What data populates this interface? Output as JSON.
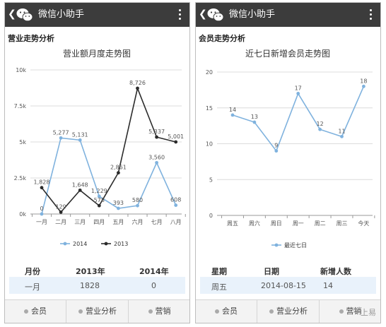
{
  "app_title": "微信小助手",
  "left": {
    "section_title": "营业走势分析",
    "table": {
      "headers": [
        "月份",
        "2013年",
        "2014年"
      ],
      "rows": [
        [
          "一月",
          "1828",
          "0"
        ]
      ]
    },
    "tabs": [
      "会员",
      "营业分析",
      "营销"
    ]
  },
  "right": {
    "section_title": "会员走势分析",
    "table": {
      "headers": [
        "星期",
        "日期",
        "新增人数"
      ],
      "rows": [
        [
          "周五",
          "2014-08-15",
          "14"
        ]
      ]
    },
    "tabs": [
      "会员",
      "营业分析",
      "营销"
    ]
  },
  "watermark": "一上易",
  "colors": {
    "topbar": "#3c3c3c",
    "series_blue": "#7fb2de",
    "series_black": "#2b2b2b",
    "row_highlight": "#e9f2fb"
  },
  "chart_data": [
    {
      "type": "line",
      "title": "营业额月度走势图",
      "categories": [
        "一月",
        "二月",
        "三月",
        "四月",
        "五月",
        "六月",
        "七月",
        "八月"
      ],
      "series": [
        {
          "name": "2014",
          "values": [
            0,
            5277,
            5131,
            1229,
            393,
            580,
            3560,
            608
          ],
          "labels": [
            "0",
            "5,277",
            "5,131",
            "1,229",
            "393",
            "580",
            "3,560",
            "608"
          ],
          "color": "#7fb2de"
        },
        {
          "name": "2013",
          "values": [
            1828,
            129,
            1648,
            578,
            2861,
            8726,
            5337,
            5001
          ],
          "labels": [
            "1,828",
            "129",
            "1,648",
            "578",
            "2,861",
            "8,726",
            "5,337",
            "5,001"
          ],
          "color": "#2b2b2b"
        }
      ],
      "y_ticks": [
        "0k",
        "2.5k",
        "5k",
        "7.5k",
        "10k"
      ],
      "ylim": [
        0,
        10000
      ],
      "grid": true,
      "legend": "bottom"
    },
    {
      "type": "line",
      "title": "近七日新增会员走势图",
      "categories": [
        "周五",
        "周六",
        "周日",
        "周一",
        "周二",
        "周三",
        "今天"
      ],
      "series": [
        {
          "name": "最近七日",
          "values": [
            14,
            13,
            9,
            17,
            12,
            11,
            18
          ],
          "labels": [
            "14",
            "13",
            "9",
            "17",
            "12",
            "11",
            "18"
          ],
          "color": "#7fb2de"
        }
      ],
      "y_ticks": [
        "0",
        "5",
        "10",
        "15",
        "20"
      ],
      "ylim": [
        0,
        20
      ],
      "grid": true,
      "legend": "bottom"
    }
  ]
}
